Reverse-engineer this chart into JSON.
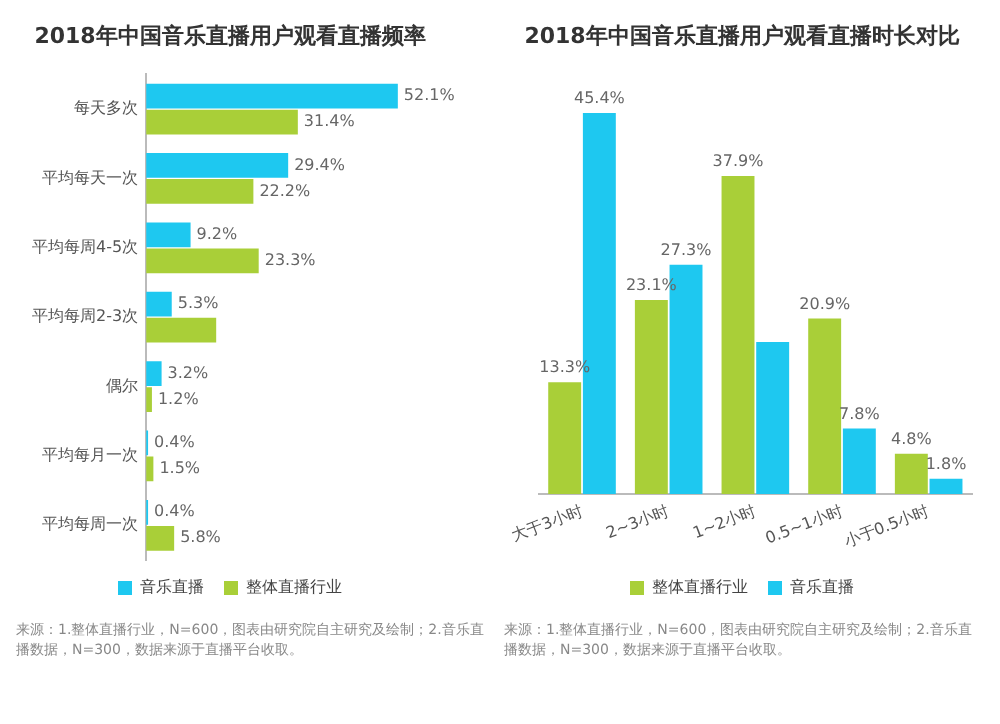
{
  "chart_data": [
    {
      "type": "bar",
      "orientation": "horizontal",
      "title": "2018年中国音乐直播用户观看直播频率",
      "categories": [
        "每天多次",
        "平均每天一次",
        "平均每周4-5次",
        "平均每周2-3次",
        "偶尔",
        "平均每月一次",
        "平均每周一次"
      ],
      "series": [
        {
          "name": "音乐直播",
          "color": "#1ec8f0",
          "values": [
            52.1,
            29.4,
            9.2,
            5.3,
            3.2,
            0.4,
            0.4
          ],
          "value_labels": [
            "52.1%",
            "29.4%",
            "9.2%",
            "5.3%",
            "3.2%",
            "0.4%",
            "0.4%"
          ]
        },
        {
          "name": "整体直播行业",
          "color": "#a9cf38",
          "values": [
            31.4,
            22.2,
            23.3,
            14.5,
            1.2,
            1.5,
            5.8
          ],
          "value_labels": [
            "31.4%",
            "22.2%",
            "23.3%",
            null,
            "1.2%",
            "1.5%",
            "5.8%"
          ]
        }
      ],
      "legend": "bottom",
      "tick_labels": "y",
      "annotations": [
        "来源：1.整体直播行业，N=600，图表由研究院自主研究及绘制；2.音乐直播数据，N=300，数据来源于直播平台收取。"
      ]
    },
    {
      "type": "bar",
      "title": "2018年中国音乐直播用户观看直播时长对比",
      "categories": [
        "大于3小时",
        "2~3小时",
        "1~2小时",
        "0.5~1小时",
        "小于0.5小时"
      ],
      "series": [
        {
          "name": "整体直播行业",
          "color": "#a9cf38",
          "values": [
            13.3,
            23.1,
            37.9,
            20.9,
            4.8
          ],
          "value_labels": [
            "13.3%",
            "23.1%",
            "37.9%",
            "20.9%",
            "4.8%"
          ]
        },
        {
          "name": "音乐直播",
          "color": "#1ec8f0",
          "values": [
            45.4,
            27.3,
            18.1,
            7.8,
            1.8
          ],
          "value_labels": [
            "45.4%",
            "27.3%",
            null,
            "7.8%",
            "1.8%"
          ]
        }
      ],
      "legend": "bottom",
      "tick_labels": "x",
      "annotations": [
        "来源：1.整体直播行业，N=600，图表由研究院自主研究及绘制；2.音乐直播数据，N=300，数据来源于直播平台收取。"
      ]
    }
  ]
}
